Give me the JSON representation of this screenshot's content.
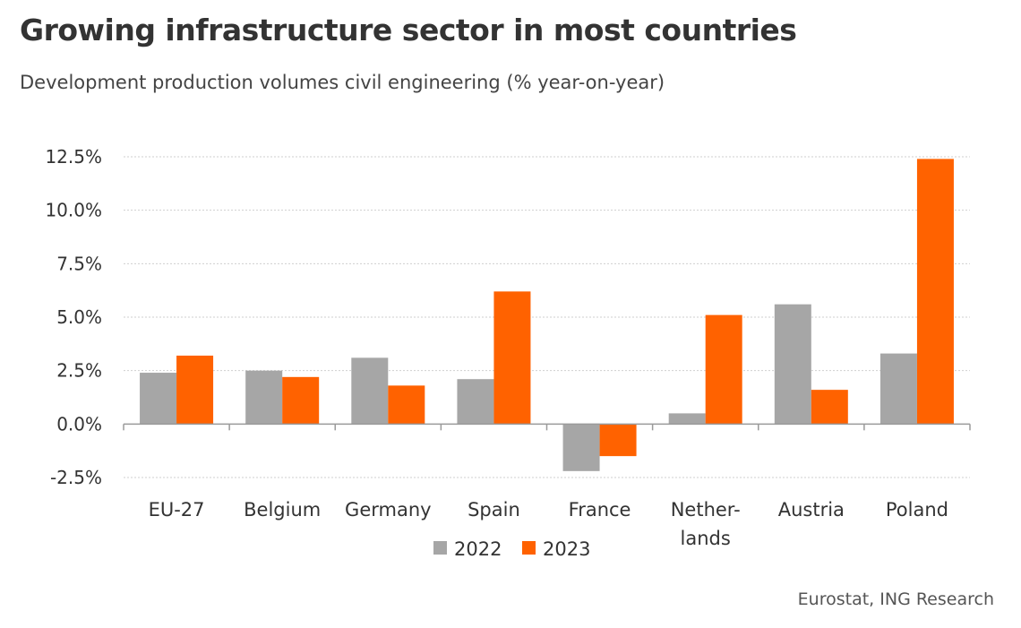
{
  "chart_data": {
    "type": "bar",
    "title": "Growing infrastructure sector in most countries",
    "subtitle": "Development production volumes civil engineering (% year-on-year)",
    "categories": [
      "EU-27",
      "Belgium",
      "Germany",
      "Spain",
      "France",
      "Nether-|lands",
      "Austria",
      "Poland"
    ],
    "series": [
      {
        "name": "2022",
        "color": "#a6a6a6",
        "values": [
          2.4,
          2.5,
          3.1,
          2.1,
          -2.2,
          0.5,
          5.6,
          3.3
        ]
      },
      {
        "name": "2023",
        "color": "#ff6200",
        "values": [
          3.2,
          2.2,
          1.8,
          6.2,
          -1.5,
          5.1,
          1.6,
          12.4
        ]
      }
    ],
    "ylim": [
      -2.5,
      12.5
    ],
    "yticks": [
      "12.5%",
      "10.0%",
      "7.5%",
      "5.0%",
      "2.5%",
      "0.0%",
      "-2.5%"
    ],
    "ytick_values": [
      12.5,
      10.0,
      7.5,
      5.0,
      2.5,
      0.0,
      -2.5
    ],
    "grid": true,
    "gridline_style": "dotted",
    "legend_position": "bottom-center",
    "source": "Eurostat, ING Research"
  }
}
